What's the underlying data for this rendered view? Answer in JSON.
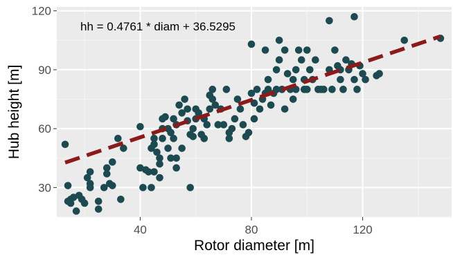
{
  "chart_data": {
    "type": "scatter",
    "xlabel": "Rotor diameter [m]",
    "ylabel": "Hub height [m]",
    "xlim": [
      10,
      152
    ],
    "ylim": [
      15,
      122
    ],
    "x_ticks": [
      40,
      80,
      120
    ],
    "y_ticks": [
      30,
      60,
      90,
      120
    ],
    "x_tick_labels": [
      "40",
      "80",
      "120"
    ],
    "y_tick_labels": [
      "30",
      "60",
      "90",
      "120"
    ],
    "grid": true,
    "annotation": "hh = 0.4761 * diam + 36.5295",
    "regression": {
      "slope": 0.4761,
      "intercept": 36.5295,
      "x_range": [
        13,
        148
      ]
    },
    "colors": {
      "panel_background": "#ebebeb",
      "grid_major": "#ffffff",
      "grid_minor": "#f5f5f5",
      "points": "#1d4a50",
      "fit_line": "#8b1a1a"
    },
    "points": [
      [
        13,
        52
      ],
      [
        14,
        31
      ],
      [
        15,
        24
      ],
      [
        14,
        23
      ],
      [
        15,
        22
      ],
      [
        16,
        25
      ],
      [
        17,
        18
      ],
      [
        18,
        26
      ],
      [
        19,
        24
      ],
      [
        20,
        22
      ],
      [
        21,
        35
      ],
      [
        22,
        38
      ],
      [
        22,
        32
      ],
      [
        22,
        30
      ],
      [
        25,
        23
      ],
      [
        25,
        19
      ],
      [
        27,
        30
      ],
      [
        28,
        37
      ],
      [
        28,
        40
      ],
      [
        29,
        32
      ],
      [
        30,
        31
      ],
      [
        30,
        43
      ],
      [
        32,
        55
      ],
      [
        33,
        24
      ],
      [
        34,
        50
      ],
      [
        40,
        61
      ],
      [
        40,
        40
      ],
      [
        41,
        30
      ],
      [
        42,
        39
      ],
      [
        43,
        38
      ],
      [
        44,
        30
      ],
      [
        45,
        38
      ],
      [
        44,
        50
      ],
      [
        45,
        52
      ],
      [
        45,
        55
      ],
      [
        46,
        48
      ],
      [
        47,
        45
      ],
      [
        47,
        42
      ],
      [
        47,
        35
      ],
      [
        48,
        60
      ],
      [
        48,
        65
      ],
      [
        49,
        66
      ],
      [
        48,
        55
      ],
      [
        50,
        60
      ],
      [
        50,
        50
      ],
      [
        51,
        58
      ],
      [
        51,
        45
      ],
      [
        52,
        55
      ],
      [
        52,
        65
      ],
      [
        53,
        62
      ],
      [
        53,
        45
      ],
      [
        53,
        40
      ],
      [
        54,
        72
      ],
      [
        55,
        50
      ],
      [
        55,
        68
      ],
      [
        56,
        75
      ],
      [
        57,
        70
      ],
      [
        57,
        64
      ],
      [
        58,
        30
      ],
      [
        58,
        57
      ],
      [
        59,
        56
      ],
      [
        59,
        60
      ],
      [
        60,
        65
      ],
      [
        60,
        70
      ],
      [
        61,
        68
      ],
      [
        62,
        57
      ],
      [
        63,
        55
      ],
      [
        63,
        65
      ],
      [
        64,
        62
      ],
      [
        65,
        77
      ],
      [
        65,
        70
      ],
      [
        66,
        75
      ],
      [
        66,
        80
      ],
      [
        67,
        72
      ],
      [
        68,
        62
      ],
      [
        69,
        70
      ],
      [
        70,
        62
      ],
      [
        71,
        80
      ],
      [
        72,
        58
      ],
      [
        72,
        55
      ],
      [
        73,
        60
      ],
      [
        74,
        65
      ],
      [
        75,
        75
      ],
      [
        76,
        70
      ],
      [
        77,
        62
      ],
      [
        78,
        56
      ],
      [
        79,
        58
      ],
      [
        80,
        78
      ],
      [
        80,
        103
      ],
      [
        81,
        73
      ],
      [
        81,
        65
      ],
      [
        82,
        80
      ],
      [
        83,
        70
      ],
      [
        84,
        75
      ],
      [
        85,
        100
      ],
      [
        85,
        78
      ],
      [
        86,
        85
      ],
      [
        86,
        80
      ],
      [
        87,
        72
      ],
      [
        88,
        78
      ],
      [
        89,
        90
      ],
      [
        89,
        80
      ],
      [
        90,
        105
      ],
      [
        90,
        95
      ],
      [
        91,
        80
      ],
      [
        92,
        100
      ],
      [
        92,
        70
      ],
      [
        93,
        88
      ],
      [
        94,
        80
      ],
      [
        95,
        85
      ],
      [
        95,
        75
      ],
      [
        96,
        90
      ],
      [
        96,
        80
      ],
      [
        97,
        100
      ],
      [
        98,
        95
      ],
      [
        99,
        85
      ],
      [
        99,
        80
      ],
      [
        100,
        100
      ],
      [
        100,
        80
      ],
      [
        101,
        90
      ],
      [
        102,
        85
      ],
      [
        103,
        95
      ],
      [
        104,
        80
      ],
      [
        105,
        80
      ],
      [
        106,
        80
      ],
      [
        108,
        115
      ],
      [
        108,
        90
      ],
      [
        109,
        80
      ],
      [
        110,
        100
      ],
      [
        111,
        92
      ],
      [
        112,
        90
      ],
      [
        112,
        85
      ],
      [
        113,
        80
      ],
      [
        114,
        95
      ],
      [
        115,
        90
      ],
      [
        116,
        93
      ],
      [
        117,
        117
      ],
      [
        117,
        85
      ],
      [
        118,
        80
      ],
      [
        119,
        92
      ],
      [
        120,
        88
      ],
      [
        121,
        85
      ],
      [
        125,
        87
      ],
      [
        126,
        88
      ],
      [
        135,
        105
      ],
      [
        148,
        106
      ]
    ]
  }
}
